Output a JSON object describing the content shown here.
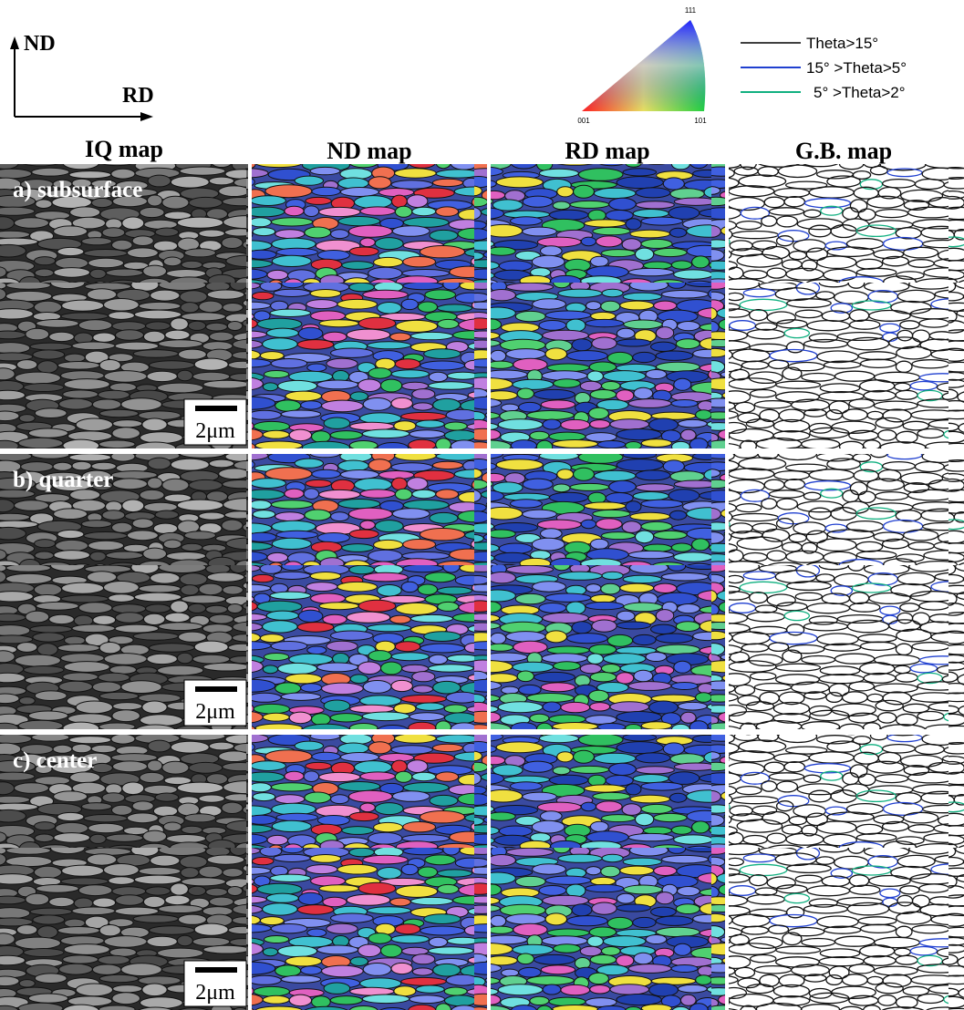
{
  "header": {
    "axes": {
      "vertical": "ND",
      "horizontal": "RD"
    },
    "triangle": {
      "top": "111",
      "left": "001",
      "right": "101"
    },
    "legend": [
      "Theta>15°",
      "15° >Theta>5°",
      "5° >Theta>2°"
    ]
  },
  "columns": [
    "IQ map",
    "ND map",
    "RD map",
    "G.B. map"
  ],
  "rows": [
    {
      "label": "a) subsurface",
      "scale_bar": "2μm"
    },
    {
      "label": "b) quarter",
      "scale_bar": "2μm"
    },
    {
      "label": "c) center",
      "scale_bar": "2μm"
    }
  ]
}
